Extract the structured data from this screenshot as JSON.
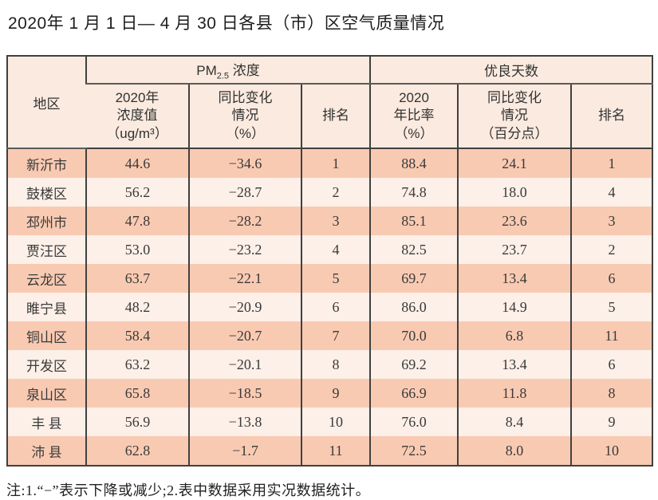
{
  "title": "2020年 1 月 1 日— 4 月 30 日各县（市）区空气质量情况",
  "table": {
    "region_header": "地区",
    "pm25_group": {
      "pre": "PM",
      "sub": "2.5",
      "post": " 浓度"
    },
    "good_days_group": "优良天数",
    "columns": {
      "pm_value": "2020年\n浓度值\n（ug/m³）",
      "pm_change": "同比变化\n情况\n（%）",
      "pm_rank": "排名",
      "good_ratio": "2020\n年比率\n（%）",
      "good_change": "同比变化\n情况\n（百分点）",
      "good_rank": "排名"
    },
    "rows": [
      {
        "region": "新沂市",
        "pm_value": "44.6",
        "pm_change": "−34.6",
        "pm_rank": "1",
        "good_ratio": "88.4",
        "good_change": "24.1",
        "good_rank": "1"
      },
      {
        "region": "鼓楼区",
        "pm_value": "56.2",
        "pm_change": "−28.7",
        "pm_rank": "2",
        "good_ratio": "74.8",
        "good_change": "18.0",
        "good_rank": "4"
      },
      {
        "region": "邳州市",
        "pm_value": "47.8",
        "pm_change": "−28.2",
        "pm_rank": "3",
        "good_ratio": "85.1",
        "good_change": "23.6",
        "good_rank": "3"
      },
      {
        "region": "贾汪区",
        "pm_value": "53.0",
        "pm_change": "−23.2",
        "pm_rank": "4",
        "good_ratio": "82.5",
        "good_change": "23.7",
        "good_rank": "2"
      },
      {
        "region": "云龙区",
        "pm_value": "63.7",
        "pm_change": "−22.1",
        "pm_rank": "5",
        "good_ratio": "69.7",
        "good_change": "13.4",
        "good_rank": "6"
      },
      {
        "region": "睢宁县",
        "pm_value": "48.2",
        "pm_change": "−20.9",
        "pm_rank": "6",
        "good_ratio": "86.0",
        "good_change": "14.9",
        "good_rank": "5"
      },
      {
        "region": "铜山区",
        "pm_value": "58.4",
        "pm_change": "−20.7",
        "pm_rank": "7",
        "good_ratio": "70.0",
        "good_change": "6.8",
        "good_rank": "11"
      },
      {
        "region": "开发区",
        "pm_value": "63.2",
        "pm_change": "−20.1",
        "pm_rank": "8",
        "good_ratio": "69.2",
        "good_change": "13.4",
        "good_rank": "6"
      },
      {
        "region": "泉山区",
        "pm_value": "65.8",
        "pm_change": "−18.5",
        "pm_rank": "9",
        "good_ratio": "66.9",
        "good_change": "11.8",
        "good_rank": "8"
      },
      {
        "region": "丰 县",
        "pm_value": "56.9",
        "pm_change": "−13.8",
        "pm_rank": "10",
        "good_ratio": "76.0",
        "good_change": "8.4",
        "good_rank": "9"
      },
      {
        "region": "沛 县",
        "pm_value": "62.8",
        "pm_change": "−1.7",
        "pm_rank": "11",
        "good_ratio": "72.5",
        "good_change": "8.0",
        "good_rank": "10"
      }
    ]
  },
  "note": "注:1.“−”表示下降或减少;2.表中数据采用实况数据统计。",
  "colors": {
    "row_odd": "#f9cab2",
    "row_even": "#fcf0e8",
    "header_bg": "#fbeadf",
    "border": "#404040",
    "text": "#3a3a3a"
  }
}
